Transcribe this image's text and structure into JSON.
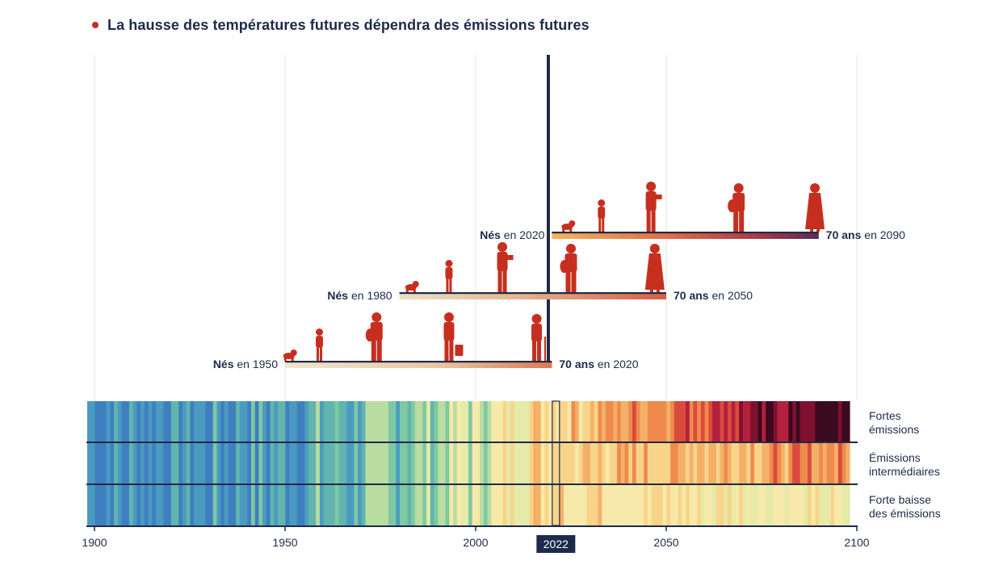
{
  "title": "La hausse des températures futures dépendra des émissions futures",
  "colors": {
    "navy": "#1e2a4a",
    "accent_red": "#c62f1f",
    "warming_stripes_scale": [
      "#3f7fc0",
      "#4a9bbf",
      "#62b5ad",
      "#7ec8a3",
      "#b9dda0",
      "#e5eaa8",
      "#f7e9a9",
      "#f8d48a",
      "#f5b068",
      "#ef8a4d",
      "#d94b3c",
      "#b3213c",
      "#7e1030",
      "#3a0a1f"
    ]
  },
  "chart_data": {
    "type": "heatmap",
    "x_range": [
      1900,
      2100
    ],
    "x_ticks": [
      "1900",
      "1950",
      "2000",
      "2050",
      "2100"
    ],
    "highlight_year": "2022",
    "present_year": 2022,
    "generations": [
      {
        "born": 1950,
        "age70": 2020,
        "born_bold": "Nés",
        "born_rest": " en 1950",
        "end_bold": "70 ans",
        "end_rest": " en 2020",
        "life_stages": [
          {
            "year": 1951,
            "stage": "baby-crawling"
          },
          {
            "year": 1959,
            "stage": "child"
          },
          {
            "year": 1974,
            "stage": "adult-with-bag"
          },
          {
            "year": 1993,
            "stage": "adult-with-suitcase"
          },
          {
            "year": 2016,
            "stage": "elderly-with-cane"
          }
        ]
      },
      {
        "born": 1980,
        "age70": 2050,
        "born_bold": "Nés",
        "born_rest": " en 1980",
        "end_bold": "70 ans",
        "end_rest": " en 2050",
        "life_stages": [
          {
            "year": 1983,
            "stage": "baby-crawling"
          },
          {
            "year": 1993,
            "stage": "child"
          },
          {
            "year": 2007,
            "stage": "adult-reading"
          },
          {
            "year": 2025,
            "stage": "adult-with-bag"
          },
          {
            "year": 2047,
            "stage": "elderly-coat"
          }
        ]
      },
      {
        "born": 2020,
        "age70": 2090,
        "born_bold": "Nés",
        "born_rest": " en 2020",
        "end_bold": "70 ans",
        "end_rest": " en 2090",
        "life_stages": [
          {
            "year": 2024,
            "stage": "baby-crawling"
          },
          {
            "year": 2033,
            "stage": "child"
          },
          {
            "year": 2046,
            "stage": "adult-reading"
          },
          {
            "year": 2069,
            "stage": "adult-with-bag"
          },
          {
            "year": 2089,
            "stage": "elderly-coat"
          }
        ]
      }
    ],
    "scenarios": [
      {
        "label": [
          "Fortes",
          "émissions"
        ],
        "end_level": 1.0
      },
      {
        "label": [
          "Émissions",
          "intermédiaires"
        ],
        "end_level": 0.68
      },
      {
        "label": [
          "Forte baisse",
          "des émissions"
        ],
        "end_level": 0.42
      }
    ]
  }
}
